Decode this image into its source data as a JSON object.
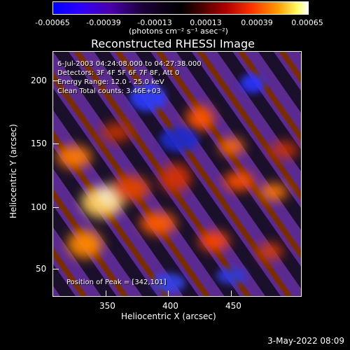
{
  "colorbar": {
    "tick_labels": [
      "-0.00065",
      "-0.00039",
      "-0.00013",
      "0.00013",
      "0.00039",
      "0.00065"
    ],
    "unit_label": "(photons cm⁻² s⁻¹ asec⁻²)"
  },
  "title": "Reconstructed RHESSI Image",
  "overlay": {
    "time_range": "6-Jul-2003 04:24:08.000 to 04:27:38.000",
    "detectors": "Detectors: 3F 4F 5F 6F 7F 8F, Att 0",
    "energy_range": "Energy Range: 12.0 - 25.0 keV",
    "clean_counts": "Clean    Total counts: 3.46E+03",
    "peak_position": "Position of Peak = [342,101]"
  },
  "axes": {
    "x_label": "Heliocentric X (arcsec)",
    "y_label": "Heliocentric Y (arcsec)",
    "x_ticks": [
      "350",
      "400",
      "450"
    ],
    "y_ticks": [
      "50",
      "100",
      "150",
      "200"
    ]
  },
  "timestamp": "3-May-2022 08:09"
}
